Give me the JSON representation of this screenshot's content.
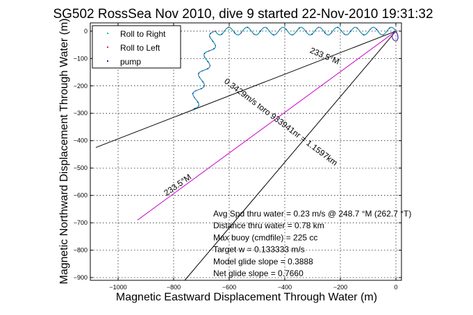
{
  "chart_data": {
    "type": "line",
    "title": "SG502 RossSea Nov 2010, dive 9 started 22-Nov-2010 19:31:32",
    "xlabel": "Magnetic Eastward Displacement Through Water (m)",
    "ylabel": "Magnetic Northward Displacement Through Water (m)",
    "xlim": [
      -1100,
      20
    ],
    "ylim": [
      -910,
      30
    ],
    "xticks": [
      -1000,
      -800,
      -600,
      -400,
      -200,
      0
    ],
    "xtick_labels": [
      "−1000",
      "−800",
      "−600",
      "−400",
      "−200",
      "0"
    ],
    "yticks": [
      0,
      -100,
      -200,
      -300,
      -400,
      -500,
      -600,
      -700,
      -800,
      -900
    ],
    "ytick_labels": [
      "0",
      "−100",
      "−200",
      "−300",
      "−400",
      "−500",
      "−600",
      "−700",
      "−800",
      "−900"
    ],
    "grid": true,
    "legend_position": "top-left",
    "series": [
      {
        "name": "Roll to Right",
        "color": "#00b090",
        "marker": "dot"
      },
      {
        "name": "Roll to Left",
        "color": "#e0006c",
        "marker": "dot"
      },
      {
        "name": "pump",
        "color": "#0000cc",
        "marker": "dot"
      }
    ],
    "track_color": "#1a9fb0",
    "track": {
      "segment_a": {
        "from": [
          0,
          0
        ],
        "to": [
          -650,
          0
        ],
        "wiggle_amplitude": 14,
        "wiggles": 10
      },
      "segment_b": {
        "from": [
          -650,
          0
        ],
        "to": [
          -730,
          -285
        ],
        "wiggle_amplitude": 16,
        "wiggles": 4
      },
      "end": [
        -680,
        30
      ]
    },
    "reference_lines": [
      {
        "from": [
          0,
          0
        ],
        "to": [
          -1080,
          -425
        ],
        "color": "#000000"
      },
      {
        "from": [
          0,
          0
        ],
        "to": [
          -760,
          -910
        ],
        "color": "#000000"
      },
      {
        "from": [
          0,
          0
        ],
        "to": [
          -930,
          -690
        ],
        "color": "#cc00cc"
      }
    ],
    "line_labels": [
      {
        "text": "233.5°M",
        "at": [
          -260,
          -100
        ],
        "rotate": 23
      },
      {
        "text": "0.3429m/s toro 933941nr = 1.1597km",
        "at": [
          -420,
          -340
        ],
        "rotate": 37
      },
      {
        "text": "233.5°M",
        "at": [
          -780,
          -570
        ],
        "rotate": -35
      }
    ],
    "annotations": [
      "Avg Spd thru water =  0.23 m/s @ 248.7   °M (262.7 °T)",
      "Distance thru water =  0.78 km",
      "Max buoy (cmdfile) = 225 cc",
      "Target w = 0.133333 m/s",
      "Model glide slope = 0.3888",
      "Net glide slope = 0.7660"
    ]
  }
}
